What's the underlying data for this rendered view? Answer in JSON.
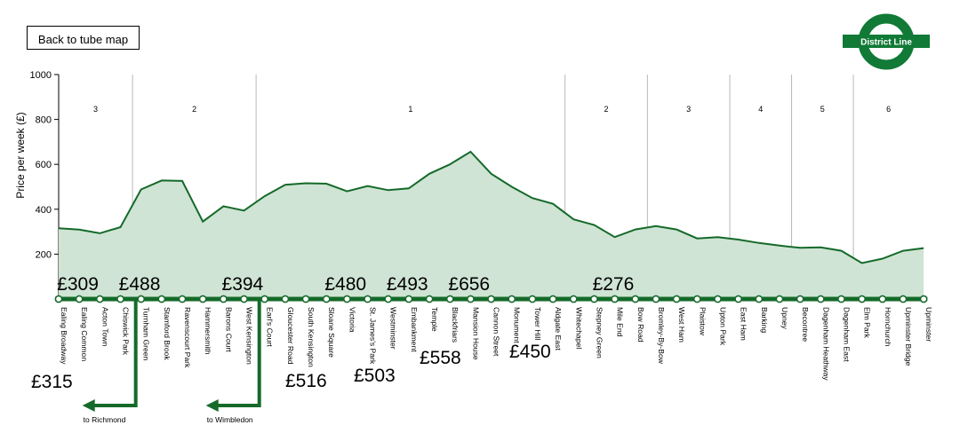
{
  "back_button_label": "Back to tube map",
  "line_logo_text": "District Line",
  "colors": {
    "line": "#156a2a",
    "fill": "#cfe4d4",
    "roundel": "#107a36"
  },
  "chart_data": {
    "type": "area",
    "ylabel": "Price per week (£)",
    "ylim": [
      0,
      1000
    ],
    "yticks": [
      200,
      400,
      600,
      800,
      1000
    ],
    "zones": [
      {
        "label": "3",
        "from": 0,
        "to": 4
      },
      {
        "label": "2",
        "from": 4,
        "to": 10
      },
      {
        "label": "1",
        "from": 10,
        "to": 25
      },
      {
        "label": "2",
        "from": 25,
        "to": 29
      },
      {
        "label": "3",
        "from": 29,
        "to": 33
      },
      {
        "label": "4",
        "from": 33,
        "to": 36
      },
      {
        "label": "5",
        "from": 36,
        "to": 39
      },
      {
        "label": "6",
        "from": 39,
        "to": 43
      }
    ],
    "stations": [
      "Ealing Broadway",
      "Ealing Common",
      "Acton Town",
      "Chiswick Park",
      "Turnham Green",
      "Stamford Brook",
      "Ravenscourt Park",
      "Hammersmith",
      "Barons Court",
      "West Kensington",
      "Earl's Court",
      "Gloucester Road",
      "South Kensington",
      "Sloane Square",
      "Victoria",
      "St. James's Park",
      "Westminster",
      "Embankment",
      "Temple",
      "Blackfriars",
      "Mansion House",
      "Cannon Street",
      "Monument",
      "Tower Hill",
      "Aldgate East",
      "Whitechapel",
      "Stepney Green",
      "Mile End",
      "Bow Road",
      "Bromley-By-Bow",
      "West Ham",
      "Plaistow",
      "Upton Park",
      "East Ham",
      "Barking",
      "Upney",
      "Becontree",
      "Dagenham Heathway",
      "Dagenham East",
      "Elm Park",
      "Hornchurch",
      "Upminster Bridge",
      "Upminster"
    ],
    "values": [
      315,
      309,
      293,
      320,
      488,
      528,
      526,
      345,
      413,
      394,
      458,
      509,
      516,
      514,
      480,
      503,
      485,
      493,
      558,
      600,
      656,
      558,
      500,
      450,
      424,
      355,
      330,
      276,
      310,
      325,
      310,
      270,
      276,
      265,
      250,
      238,
      228,
      230,
      215,
      160,
      180,
      215,
      227
    ],
    "price_labels": [
      {
        "text": "£309",
        "station": 1
      },
      {
        "text": "£488",
        "station": 4
      },
      {
        "text": "£394",
        "station": 9
      },
      {
        "text": "£480",
        "station": 14
      },
      {
        "text": "£493",
        "station": 17
      },
      {
        "text": "£656",
        "station": 20
      },
      {
        "text": "£276",
        "station": 27
      },
      {
        "text": "£315",
        "station": 0
      },
      {
        "text": "£516",
        "station": 12
      },
      {
        "text": "£503",
        "station": 15
      },
      {
        "text": "£558",
        "station": 18
      },
      {
        "text": "£450",
        "station": 23
      }
    ],
    "branches": [
      {
        "label": "to Richmond",
        "station": 4
      },
      {
        "label": "to Wimbledon",
        "station": 10
      }
    ]
  }
}
